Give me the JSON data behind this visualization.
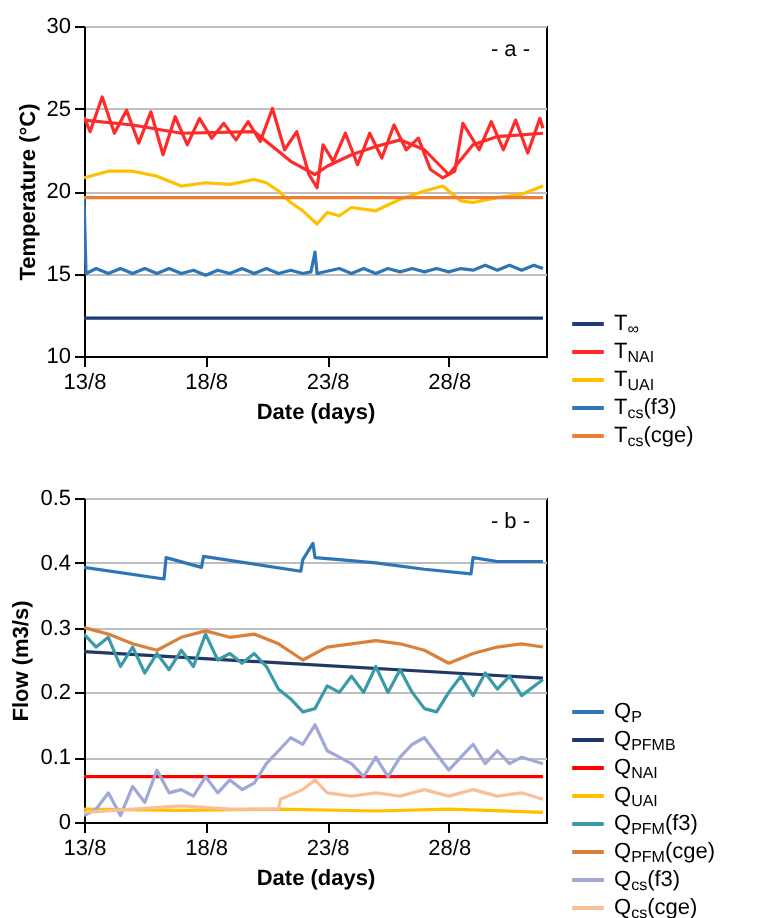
{
  "chart_data": [
    {
      "type": "line",
      "ylabel": "Temperature (°C)",
      "xlabel": "Date (days)",
      "annotations": [
        "- a -"
      ],
      "xlim": [
        "--08-13",
        "--09-01"
      ],
      "xticks": [
        {
          "value": "--08-13",
          "label": "13/8"
        },
        {
          "value": "--08-18",
          "label": "18/8"
        },
        {
          "value": "--08-23",
          "label": "23/8"
        },
        {
          "value": "--08-28",
          "label": "28/8"
        }
      ],
      "ylim": [
        10,
        30
      ],
      "yticks": [
        10,
        15,
        20,
        25,
        30
      ],
      "grid": "y",
      "legend": "right",
      "line_style": "solid",
      "marker": "none",
      "series": [
        {
          "name": "T$_{∞}$",
          "color": "#1f3b73",
          "x": [
            "--08-13",
            "--08-31T21:00"
          ],
          "values": [
            12.3,
            12.3
          ]
        },
        {
          "name": "T$_{NAI}$",
          "color": "#ff2a2a",
          "x": [
            "--08-13",
            "--08-13T06:00",
            "--08-13T18:00",
            "--08-14T06:00",
            "--08-14T18:00",
            "--08-15T06:00",
            "--08-15T18:00",
            "--08-16T06:00",
            "--08-16T18:00",
            "--08-17T06:00",
            "--08-17T18:00",
            "--08-18T06:00",
            "--08-18T18:00",
            "--08-19T06:00",
            "--08-19T18:00",
            "--08-20T06:00",
            "--08-20T18:00",
            "--08-21T06:00",
            "--08-21T18:00",
            "--08-22T06:00",
            "--08-22T14:00",
            "--08-22T20:00",
            "--08-23T06:00",
            "--08-23T18:00",
            "--08-24T06:00",
            "--08-24T18:00",
            "--08-25T06:00",
            "--08-25T18:00",
            "--08-26T06:00",
            "--08-26T18:00",
            "--08-27T06:00",
            "--08-27T18:00",
            "--08-28T06:00",
            "--08-28T14:00",
            "--08-29T06:00",
            "--08-29T18:00",
            "--08-30T06:00",
            "--08-30T18:00",
            "--08-31T06:00",
            "--08-31T18:00",
            "--08-31T21:00"
          ],
          "values": [
            24.5,
            23.6,
            25.7,
            23.5,
            24.9,
            22.9,
            24.8,
            22.2,
            24.5,
            22.8,
            24.4,
            23.2,
            24.1,
            23.1,
            24.2,
            23.0,
            25.0,
            22.5,
            23.6,
            21.0,
            20.2,
            22.8,
            21.8,
            23.5,
            21.6,
            23.5,
            22.0,
            24.0,
            22.5,
            23.2,
            21.3,
            20.8,
            21.2,
            24.1,
            22.5,
            24.2,
            22.5,
            24.3,
            22.3,
            24.4,
            23.8
          ]
        },
        {
          "color": "#ff2a2a",
          "x": [
            "--08-13",
            "--08-15",
            "--08-17",
            "--08-20",
            "--08-21T12:00",
            "--08-22T12:00",
            "--08-23",
            "--08-24",
            "--08-25",
            "--08-26",
            "--08-27",
            "--08-28",
            "--08-29",
            "--08-30",
            "--08-31T21:00"
          ],
          "values": [
            24.3,
            24.0,
            23.5,
            23.6,
            21.8,
            21.0,
            21.5,
            22.2,
            22.7,
            23.1,
            22.5,
            21.0,
            22.8,
            23.3,
            23.5
          ]
        },
        {
          "name": "T$_{UAI}$",
          "color": "#ffc000",
          "x": [
            "--08-13",
            "--08-14",
            "--08-15",
            "--08-16",
            "--08-17",
            "--08-18",
            "--08-19",
            "--08-20",
            "--08-20T12:00",
            "--08-21",
            "--08-21T12:00",
            "--08-22",
            "--08-22T14:00",
            "--08-23",
            "--08-23T12:00",
            "--08-24",
            "--08-25",
            "--08-26",
            "--08-27",
            "--08-27T18:00",
            "--08-28T12:00",
            "--08-29",
            "--08-30",
            "--08-31",
            "--08-31T21:00"
          ],
          "values": [
            20.8,
            21.2,
            21.2,
            20.9,
            20.3,
            20.5,
            20.4,
            20.7,
            20.5,
            20.0,
            19.3,
            18.8,
            18.0,
            18.7,
            18.5,
            19.0,
            18.8,
            19.5,
            20.0,
            20.3,
            19.4,
            19.3,
            19.6,
            19.8,
            20.3
          ]
        },
        {
          "name": "T$_{cs}$(f3)",
          "color": "#2e75b6",
          "x": [
            "--08-13",
            "--08-13T02:00",
            "--08-13T12:00",
            "--08-14",
            "--08-14T12:00",
            "--08-15",
            "--08-15T12:00",
            "--08-16",
            "--08-16T12:00",
            "--08-17",
            "--08-17T12:00",
            "--08-18",
            "--08-18T12:00",
            "--08-19",
            "--08-19T12:00",
            "--08-20",
            "--08-20T12:00",
            "--08-21",
            "--08-21T12:00",
            "--08-22",
            "--08-22T08:00",
            "--08-22T12:00",
            "--08-22T14:00",
            "--08-23T12:00",
            "--08-24",
            "--08-24T12:00",
            "--08-25",
            "--08-25T12:00",
            "--08-26",
            "--08-26T12:00",
            "--08-27",
            "--08-27T12:00",
            "--08-28",
            "--08-28T12:00",
            "--08-29",
            "--08-29T12:00",
            "--08-30",
            "--08-30T12:00",
            "--08-31",
            "--08-31T12:00",
            "--08-31T21:00"
          ],
          "values": [
            19.6,
            15.0,
            15.3,
            15.0,
            15.3,
            15.0,
            15.3,
            15.0,
            15.3,
            15.0,
            15.2,
            14.9,
            15.2,
            15.0,
            15.3,
            15.0,
            15.3,
            15.0,
            15.2,
            15.0,
            15.1,
            16.3,
            15.0,
            15.3,
            15.0,
            15.3,
            15.0,
            15.3,
            15.1,
            15.3,
            15.1,
            15.3,
            15.1,
            15.3,
            15.2,
            15.5,
            15.2,
            15.5,
            15.2,
            15.5,
            15.3
          ]
        },
        {
          "name": "T$_{cs}$(cge)",
          "color": "#ed7d31",
          "x": [
            "--08-13",
            "--08-31T21:00"
          ],
          "values": [
            19.6,
            19.6
          ]
        }
      ]
    },
    {
      "type": "line",
      "ylabel": "Flow (m3/s)",
      "xlabel": "Date (days)",
      "annotations": [
        "- b -"
      ],
      "xlim": [
        "--08-13",
        "--09-01"
      ],
      "xticks": [
        {
          "value": "--08-13",
          "label": "13/8"
        },
        {
          "value": "--08-18",
          "label": "18/8"
        },
        {
          "value": "--08-23",
          "label": "23/8"
        },
        {
          "value": "--08-28",
          "label": "28/8"
        }
      ],
      "ylim": [
        0,
        0.5
      ],
      "yticks": [
        0,
        0.1,
        0.2,
        0.3,
        0.4,
        0.5
      ],
      "grid": "y",
      "legend": "right",
      "line_style": "solid",
      "marker": "none",
      "series": [
        {
          "name": "Q$_{P}$",
          "color": "#2e75b6",
          "x": [
            "--08-13",
            "--08-16T07:00",
            "--08-16T09:00",
            "--08-17T20:00",
            "--08-17T22:00",
            "--08-21T22:00",
            "--08-22",
            "--08-22T10:00",
            "--08-22T12:00",
            "--08-23T12:00",
            "--08-25",
            "--08-27",
            "--08-28T22:00",
            "--08-29",
            "--08-30",
            "--08-31T21:00"
          ],
          "values": [
            0.393,
            0.375,
            0.408,
            0.393,
            0.41,
            0.387,
            0.405,
            0.43,
            0.408,
            0.405,
            0.4,
            0.39,
            0.383,
            0.408,
            0.402,
            0.402
          ]
        },
        {
          "name": "Q$_{PFMB}$",
          "color": "#203864",
          "x": [
            "--08-13",
            "--08-31T21:00"
          ],
          "values": [
            0.263,
            0.222
          ]
        },
        {
          "name": "Q$_{NAI}$",
          "color": "#ff0000",
          "x": [
            "--08-13",
            "--08-31T21:00"
          ],
          "values": [
            0.07,
            0.07
          ]
        },
        {
          "name": "Q$_{UAI}$",
          "color": "#ffc000",
          "x": [
            "--08-13",
            "--08-17",
            "--08-21",
            "--08-25",
            "--08-28",
            "--08-31T21:00"
          ],
          "values": [
            0.02,
            0.018,
            0.02,
            0.017,
            0.02,
            0.015
          ]
        },
        {
          "name": "Q$_{PFM}$(f3)",
          "color": "#3b9aa8",
          "x": [
            "--08-13",
            "--08-13T12:00",
            "--08-14",
            "--08-14T12:00",
            "--08-15",
            "--08-15T12:00",
            "--08-16",
            "--08-16T12:00",
            "--08-17",
            "--08-17T12:00",
            "--08-18",
            "--08-18T12:00",
            "--08-19",
            "--08-19T12:00",
            "--08-20",
            "--08-20T12:00",
            "--08-21",
            "--08-21T12:00",
            "--08-22",
            "--08-22T12:00",
            "--08-23",
            "--08-23T12:00",
            "--08-24",
            "--08-24T12:00",
            "--08-25",
            "--08-25T12:00",
            "--08-26",
            "--08-26T12:00",
            "--08-27",
            "--08-27T12:00",
            "--08-28",
            "--08-28T12:00",
            "--08-29",
            "--08-29T12:00",
            "--08-30",
            "--08-30T12:00",
            "--08-31",
            "--08-31T21:00"
          ],
          "values": [
            0.29,
            0.27,
            0.285,
            0.24,
            0.27,
            0.23,
            0.26,
            0.235,
            0.265,
            0.24,
            0.29,
            0.25,
            0.26,
            0.245,
            0.26,
            0.24,
            0.205,
            0.19,
            0.17,
            0.175,
            0.21,
            0.2,
            0.225,
            0.2,
            0.24,
            0.2,
            0.235,
            0.2,
            0.175,
            0.17,
            0.2,
            0.225,
            0.195,
            0.23,
            0.205,
            0.225,
            0.195,
            0.22
          ]
        },
        {
          "name": "Q$_{PFM}$(cge)",
          "color": "#d9803a",
          "x": [
            "--08-13",
            "--08-14",
            "--08-15",
            "--08-16",
            "--08-17",
            "--08-18",
            "--08-19",
            "--08-20",
            "--08-21",
            "--08-22",
            "--08-22T12:00",
            "--08-23",
            "--08-24",
            "--08-25",
            "--08-26",
            "--08-27",
            "--08-28",
            "--08-29",
            "--08-30",
            "--08-31",
            "--08-31T21:00"
          ],
          "values": [
            0.3,
            0.29,
            0.275,
            0.265,
            0.285,
            0.295,
            0.285,
            0.29,
            0.275,
            0.25,
            0.26,
            0.27,
            0.275,
            0.28,
            0.275,
            0.265,
            0.245,
            0.26,
            0.27,
            0.275,
            0.27
          ]
        },
        {
          "name": "Q$_{cs}$(f3)",
          "color": "#9fa8d6",
          "x": [
            "--08-13",
            "--08-13T12:00",
            "--08-14",
            "--08-14T12:00",
            "--08-15",
            "--08-15T12:00",
            "--08-16",
            "--08-16T12:00",
            "--08-17",
            "--08-17T12:00",
            "--08-18",
            "--08-18T12:00",
            "--08-19",
            "--08-19T12:00",
            "--08-20",
            "--08-20T12:00",
            "--08-21",
            "--08-21T12:00",
            "--08-22",
            "--08-22T12:00",
            "--08-23",
            "--08-23T12:00",
            "--08-24",
            "--08-24T12:00",
            "--08-25",
            "--08-25T12:00",
            "--08-26",
            "--08-26T12:00",
            "--08-27",
            "--08-27T12:00",
            "--08-28",
            "--08-28T12:00",
            "--08-29",
            "--08-29T12:00",
            "--08-30",
            "--08-30T12:00",
            "--08-31",
            "--08-31T21:00"
          ],
          "values": [
            0.01,
            0.02,
            0.045,
            0.01,
            0.055,
            0.03,
            0.08,
            0.045,
            0.05,
            0.04,
            0.07,
            0.045,
            0.065,
            0.05,
            0.06,
            0.09,
            0.11,
            0.13,
            0.12,
            0.15,
            0.11,
            0.1,
            0.09,
            0.07,
            0.1,
            0.07,
            0.1,
            0.12,
            0.13,
            0.105,
            0.08,
            0.1,
            0.12,
            0.09,
            0.11,
            0.09,
            0.1,
            0.09
          ]
        },
        {
          "name": "Q$_{cs}$(cge)",
          "color": "#f8c09a",
          "x": [
            "--08-13",
            "--08-15",
            "--08-17",
            "--08-19",
            "--08-21",
            "--08-21T02:00",
            "--08-22",
            "--08-22T12:00",
            "--08-23",
            "--08-24",
            "--08-25",
            "--08-26",
            "--08-27",
            "--08-28",
            "--08-29",
            "--08-30",
            "--08-31",
            "--08-31T21:00"
          ],
          "values": [
            0.015,
            0.02,
            0.025,
            0.02,
            0.02,
            0.035,
            0.05,
            0.065,
            0.045,
            0.04,
            0.045,
            0.04,
            0.05,
            0.04,
            0.05,
            0.04,
            0.045,
            0.035
          ]
        }
      ]
    }
  ]
}
